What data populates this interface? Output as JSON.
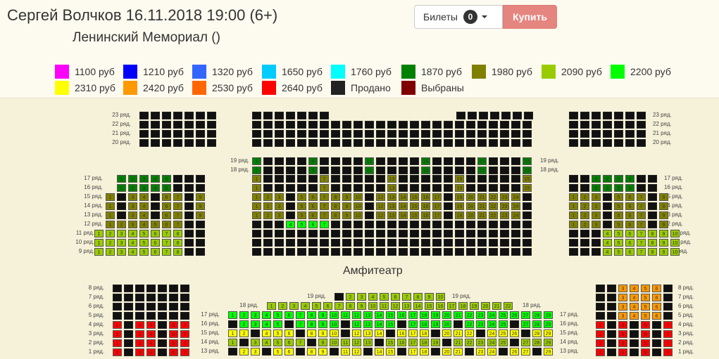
{
  "event": {
    "title": "Сергей Волчков 16.11.2018 19:00 (6+)",
    "venue": "Ленинский Мемориал ()"
  },
  "toolbar": {
    "tickets_label": "Билеты",
    "tickets_count": "0",
    "buy_label": "Купить"
  },
  "legend": [
    {
      "label": "1100 руб",
      "color": "#ff00ff"
    },
    {
      "label": "1210 руб",
      "color": "#0000ff"
    },
    {
      "label": "1320 руб",
      "color": "#3366ff"
    },
    {
      "label": "1650 руб",
      "color": "#00ccff"
    },
    {
      "label": "1760 руб",
      "color": "#00ffff"
    },
    {
      "label": "1870 руб",
      "color": "#008000"
    },
    {
      "label": "1980 руб",
      "color": "#808000"
    },
    {
      "label": "2090 руб",
      "color": "#99cc00"
    },
    {
      "label": "2200 руб",
      "color": "#00ff00"
    },
    {
      "label": "2310 руб",
      "color": "#ffff00"
    },
    {
      "label": "2420 руб",
      "color": "#ff9900"
    },
    {
      "label": "2530 руб",
      "color": "#ff6600"
    },
    {
      "label": "2640 руб",
      "color": "#ff0000"
    },
    {
      "label": "Продано",
      "color": "#222222"
    },
    {
      "label": "Выбраны",
      "color": "#800000"
    }
  ],
  "hall": {
    "amphitheatre_title": "Амфитеатр",
    "row_labels": {
      "r23": "23 ряд.",
      "r22": "22 ряд.",
      "r21": "21 ряд.",
      "r20": "20 ряд.",
      "r19": "19 ряд.",
      "r18": "18 ряд.",
      "r17": "17 ряд.",
      "r16": "16 ряд.",
      "r15": "15 ряд.",
      "r14": "14 ряд.",
      "r13": "13 ряд.",
      "r12": "12 ряд.",
      "r11": "11 ряд.",
      "r10": "10 ряд.",
      "r9": "9 ряд.",
      "r8": "8 ряд.",
      "r7": "7 ряд.",
      "r6": "6 ряд.",
      "r5": "5 ряд.",
      "r4": "4 ряд.",
      "r3": "3 ряд.",
      "r2": "2 ряд.",
      "r1": "1 ряд."
    }
  }
}
